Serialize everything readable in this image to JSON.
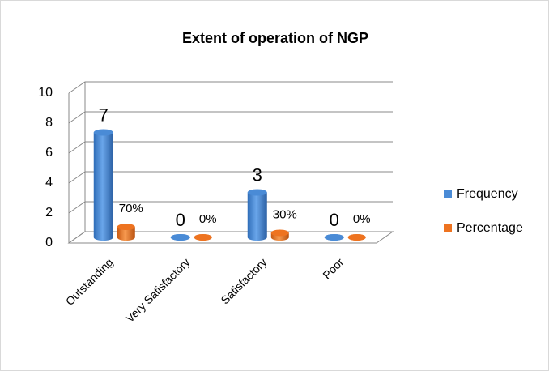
{
  "chart_data": {
    "type": "bar3d",
    "title": "Extent of operation of NGP",
    "categories": [
      "Outstanding",
      "Very Satisfactory",
      "Satisfactory",
      "Poor"
    ],
    "series": [
      {
        "name": "Frequency",
        "color": "#4a8bd6",
        "values": [
          7,
          0,
          3,
          0
        ],
        "value_labels": [
          "7",
          "0",
          "3",
          "0"
        ]
      },
      {
        "name": "Percentage",
        "color": "#ee7320",
        "values": [
          0.7,
          0,
          0.3,
          0
        ],
        "value_labels": [
          "70%",
          "0%",
          "30%",
          "0%"
        ]
      }
    ],
    "ylim": [
      0,
      10
    ],
    "yticks": [
      0,
      2,
      4,
      6,
      8,
      10
    ],
    "grid": true,
    "legend": "right"
  }
}
